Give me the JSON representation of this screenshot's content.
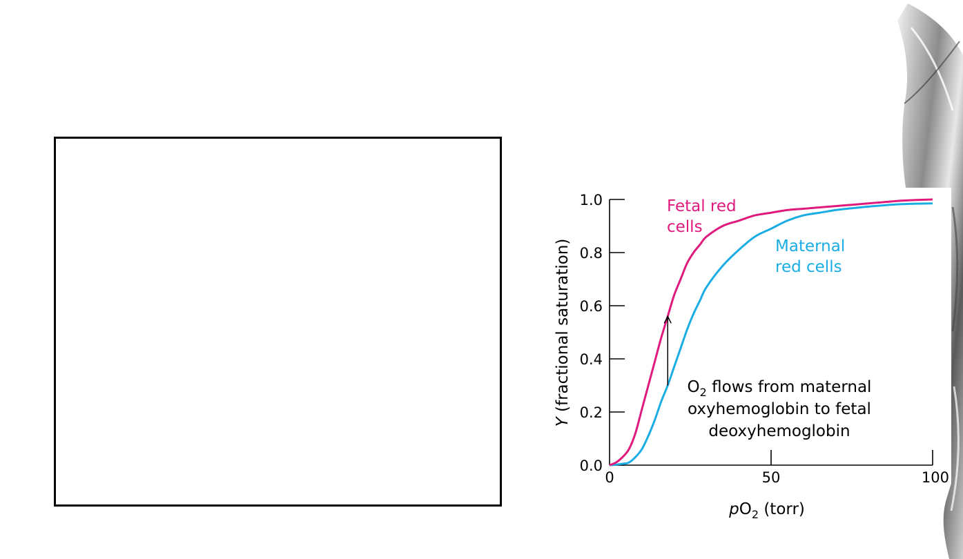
{
  "colors": {
    "fetal": "#e0197d",
    "maternal": "#1aade4",
    "axis": "#000000",
    "background": "#ffffff"
  },
  "chart_data": {
    "type": "line",
    "title": "",
    "xlabel": {
      "italic": "p",
      "main": "O",
      "sub": "2",
      "rest": " (torr)"
    },
    "ylabel": {
      "italic": "Y",
      "rest": " (fractional saturation)"
    },
    "xlim": [
      0,
      100
    ],
    "ylim": [
      0,
      1.0
    ],
    "x_ticks": [
      0,
      50,
      100
    ],
    "x_tick_labels": [
      "0",
      "50",
      "100"
    ],
    "y_ticks": [
      0,
      0.2,
      0.4,
      0.6,
      0.8,
      1.0
    ],
    "y_tick_labels": [
      "0.0",
      "0.2",
      "0.4",
      "0.6",
      "0.8",
      "1.0"
    ],
    "grid": false,
    "series": [
      {
        "name": "Fetal red cells",
        "label_lines": [
          "Fetal red",
          "cells"
        ],
        "color": "#e0197d",
        "x": [
          0,
          2,
          4,
          6,
          8,
          10,
          12,
          14,
          16,
          18,
          20,
          22,
          24,
          26,
          28,
          30,
          35,
          40,
          45,
          50,
          55,
          60,
          65,
          70,
          75,
          80,
          85,
          90,
          95,
          100
        ],
        "y": [
          0.0,
          0.01,
          0.03,
          0.06,
          0.12,
          0.21,
          0.3,
          0.39,
          0.48,
          0.56,
          0.64,
          0.7,
          0.76,
          0.8,
          0.83,
          0.86,
          0.9,
          0.92,
          0.94,
          0.95,
          0.96,
          0.965,
          0.97,
          0.975,
          0.98,
          0.985,
          0.99,
          0.995,
          0.998,
          1.0
        ]
      },
      {
        "name": "Maternal red cells",
        "label_lines": [
          "Maternal",
          "red cells"
        ],
        "color": "#1aade4",
        "x": [
          0,
          2,
          4,
          6,
          8,
          10,
          12,
          14,
          16,
          18,
          20,
          22,
          24,
          26,
          28,
          30,
          35,
          40,
          45,
          50,
          55,
          60,
          65,
          70,
          75,
          80,
          85,
          90,
          95,
          100
        ],
        "y": [
          0.0,
          0.002,
          0.005,
          0.01,
          0.03,
          0.06,
          0.11,
          0.17,
          0.24,
          0.3,
          0.37,
          0.44,
          0.51,
          0.57,
          0.62,
          0.67,
          0.75,
          0.81,
          0.86,
          0.89,
          0.92,
          0.94,
          0.95,
          0.96,
          0.967,
          0.973,
          0.978,
          0.982,
          0.984,
          0.985
        ]
      }
    ],
    "annotation": {
      "lines": [
        {
          "main": "O",
          "sub": "2",
          "rest": " flows from maternal"
        },
        {
          "text": "oxyhemoglobin to fetal"
        },
        {
          "text": "deoxyhemoglobin"
        }
      ],
      "arrow_x": 18,
      "arrow_from_y": 0.3,
      "arrow_to_y": 0.56
    }
  }
}
